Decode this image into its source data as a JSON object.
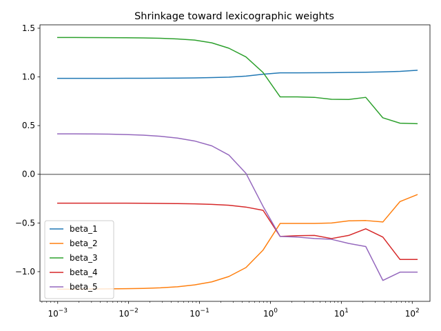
{
  "chart_data": {
    "type": "line",
    "title": "Shrinkage toward lexicographic weights",
    "xscale": "log",
    "xlim_exp": [
      -3.25,
      2.25
    ],
    "ylim": [
      -1.305,
      1.535
    ],
    "x_ticks": [
      {
        "value": 0.001,
        "base": "10",
        "exp": "−3"
      },
      {
        "value": 0.01,
        "base": "10",
        "exp": "−2"
      },
      {
        "value": 0.1,
        "base": "10",
        "exp": "−1"
      },
      {
        "value": 1,
        "base": "10",
        "exp": "0"
      },
      {
        "value": 10,
        "base": "10",
        "exp": "1"
      },
      {
        "value": 100,
        "base": "10",
        "exp": "2"
      }
    ],
    "y_ticks": [
      {
        "value": 1.5,
        "label": "1.5"
      },
      {
        "value": 1.0,
        "label": "1.0"
      },
      {
        "value": 0.5,
        "label": "0.5"
      },
      {
        "value": 0.0,
        "label": "0.0"
      },
      {
        "value": -0.5,
        "label": "−0.5"
      },
      {
        "value": -1.0,
        "label": "−1.0"
      }
    ],
    "hline": {
      "y": 0,
      "color": "#808080"
    },
    "legend_position": "lower-left",
    "x": [
      0.001,
      0.00174,
      0.00304,
      0.0053,
      0.00924,
      0.0161,
      0.0281,
      0.0489,
      0.0853,
      0.149,
      0.259,
      0.452,
      0.788,
      1.37,
      2.39,
      4.17,
      7.28,
      12.7,
      22.1,
      38.5,
      67.2,
      117
    ],
    "series": [
      {
        "name": "beta_1",
        "color": "#1f77b4",
        "values": [
          0.985,
          0.985,
          0.985,
          0.985,
          0.986,
          0.986,
          0.987,
          0.988,
          0.99,
          0.993,
          0.998,
          1.008,
          1.028,
          1.042,
          1.042,
          1.043,
          1.044,
          1.046,
          1.048,
          1.052,
          1.057,
          1.068
        ]
      },
      {
        "name": "beta_2",
        "color": "#ff7f0e",
        "values": [
          -1.18,
          -1.18,
          -1.178,
          -1.177,
          -1.175,
          -1.172,
          -1.166,
          -1.155,
          -1.136,
          -1.105,
          -1.05,
          -0.958,
          -0.778,
          -0.505,
          -0.505,
          -0.505,
          -0.5,
          -0.478,
          -0.475,
          -0.49,
          -0.28,
          -0.21
        ]
      },
      {
        "name": "beta_3",
        "color": "#2ca02c",
        "values": [
          1.405,
          1.405,
          1.404,
          1.403,
          1.402,
          1.4,
          1.397,
          1.39,
          1.378,
          1.35,
          1.295,
          1.205,
          1.045,
          0.795,
          0.795,
          0.79,
          0.77,
          0.768,
          0.79,
          0.58,
          0.525,
          0.52
        ]
      },
      {
        "name": "beta_4",
        "color": "#d62728",
        "values": [
          -0.297,
          -0.297,
          -0.297,
          -0.297,
          -0.297,
          -0.298,
          -0.299,
          -0.301,
          -0.304,
          -0.309,
          -0.318,
          -0.337,
          -0.37,
          -0.638,
          -0.63,
          -0.628,
          -0.66,
          -0.628,
          -0.56,
          -0.645,
          -0.875,
          -0.875
        ]
      },
      {
        "name": "beta_5",
        "color": "#9467bd",
        "values": [
          0.415,
          0.415,
          0.414,
          0.412,
          0.408,
          0.402,
          0.39,
          0.372,
          0.342,
          0.292,
          0.198,
          0.01,
          -0.33,
          -0.638,
          -0.645,
          -0.66,
          -0.668,
          -0.71,
          -0.742,
          -1.09,
          -1.005,
          -1.005
        ]
      }
    ]
  }
}
